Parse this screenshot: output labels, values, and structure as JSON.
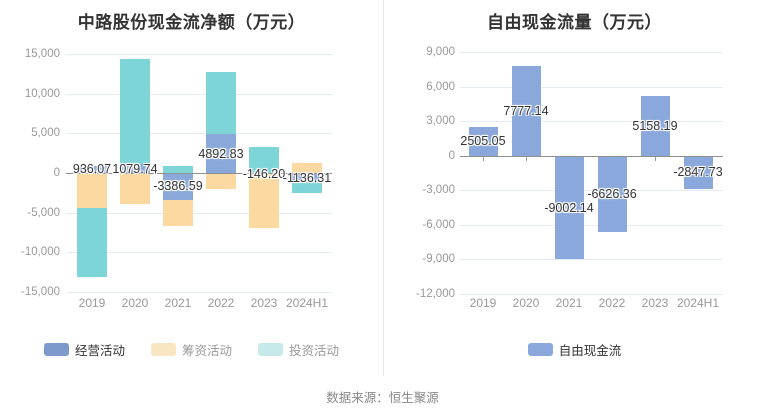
{
  "footer": {
    "source": "数据来源：恒生聚源"
  },
  "colors": {
    "grid": "#e4ebf2",
    "zero_axis": "#8f8f8f",
    "tick_label": "#999999",
    "value_label": "#333333",
    "title": "#333333",
    "divider": "#ececec",
    "footer_text": "#888888"
  },
  "chart_data": [
    {
      "type": "bar",
      "stacked": true,
      "title": "中路股份现金流净额（万元）",
      "categories": [
        "2019",
        "2020",
        "2021",
        "2022",
        "2023",
        "2024H1"
      ],
      "ylim": [
        -15000,
        15000
      ],
      "grid": true,
      "legend_position": "bottom",
      "yticks": [
        {
          "label": "15,000",
          "value": 15000
        },
        {
          "label": "10,000",
          "value": 10000
        },
        {
          "label": "5,000",
          "value": 5000
        },
        {
          "label": "0",
          "value": 0
        },
        {
          "label": "-5,000",
          "value": -5000
        },
        {
          "label": "-10,000",
          "value": -10000
        },
        {
          "label": "-15,000",
          "value": -15000
        }
      ],
      "series": [
        {
          "name": "经营活动",
          "color": "#8AA8DA",
          "legend_color": "#7E9ACD",
          "legend_text_color": "#333333",
          "labeled": true,
          "values": [
            936.07,
            1079.74,
            -3386.59,
            4892.83,
            -146.2,
            -1136.31
          ]
        },
        {
          "name": "筹资活动",
          "color": "#FBD9A0",
          "legend_color": "#FAE5C2",
          "legend_text_color": "#999999",
          "labeled": false,
          "values": [
            -4400,
            -3900,
            -3300,
            -2000,
            -6760,
            1200
          ]
        },
        {
          "name": "投资活动",
          "color": "#7ED5D8",
          "legend_color": "#C6E9E9",
          "legend_text_color": "#999999",
          "labeled": false,
          "values": [
            -8700,
            13300,
            880,
            7800,
            3220,
            -1340
          ]
        }
      ]
    },
    {
      "type": "bar",
      "stacked": false,
      "title": "自由现金流量（万元）",
      "categories": [
        "2019",
        "2020",
        "2021",
        "2022",
        "2023",
        "2024H1"
      ],
      "ylim": [
        -12000,
        9000
      ],
      "grid": true,
      "legend_position": "bottom",
      "yticks": [
        {
          "label": "9,000",
          "value": 9000
        },
        {
          "label": "6,000",
          "value": 6000
        },
        {
          "label": "3,000",
          "value": 3000
        },
        {
          "label": "0",
          "value": 0
        },
        {
          "label": "-3,000",
          "value": -3000
        },
        {
          "label": "-6,000",
          "value": -6000
        },
        {
          "label": "-9,000",
          "value": -9000
        },
        {
          "label": "-12,000",
          "value": -12000
        }
      ],
      "series": [
        {
          "name": "自由现金流",
          "color": "#8AA8DB",
          "legend_color": "#8AA8DB",
          "legend_text_color": "#333333",
          "labeled": true,
          "values": [
            2505.05,
            7777.14,
            -9002.14,
            -6626.36,
            5158.19,
            -2847.73
          ]
        }
      ]
    }
  ]
}
